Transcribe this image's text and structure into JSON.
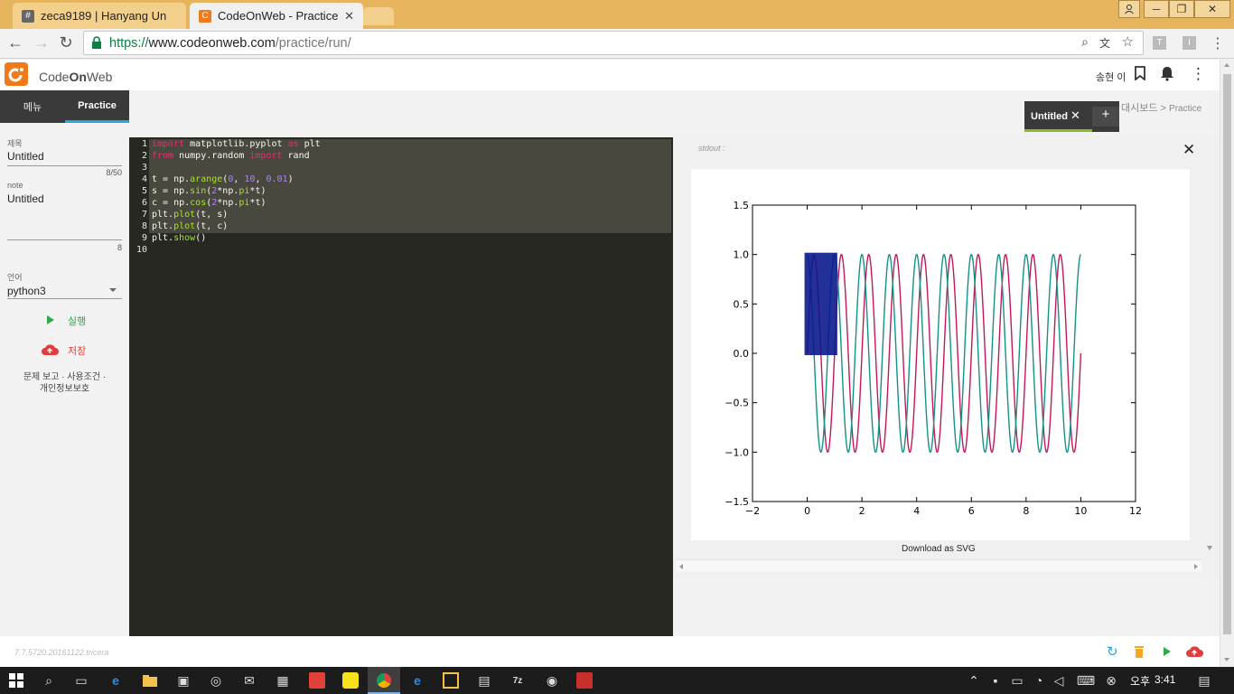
{
  "browser": {
    "tabs": [
      {
        "title": "zeca9189 | Hanyang Un",
        "favicon": "hash-icon"
      },
      {
        "title": "CodeOnWeb - Practice",
        "favicon": "codeonweb-icon"
      }
    ],
    "url_scheme": "https://",
    "url_host": "www.codeonweb.com",
    "url_path": "/practice/run/",
    "ext1": "T",
    "ext2": "I"
  },
  "app": {
    "logo_text_1": "Code",
    "logo_text_2": "On",
    "logo_text_3": "Web",
    "user_name": "송현 이",
    "accent": "#f07a1a"
  },
  "sidebar": {
    "tab_menu": "메뉴",
    "tab_practice": "Practice",
    "title_label": "제목",
    "title_value": "Untitled",
    "title_count": "8/50",
    "note_label": "note",
    "note_value": "Untitled",
    "note_count": "8",
    "lang_label": "언어",
    "lang_value": "python3",
    "run_label": "실행",
    "save_label": "저장",
    "links_line1": "문제 보고 · 사용조건 ·",
    "links_line2": "개인정보보호"
  },
  "breadcrumb": {
    "tab_label": "Untitled",
    "dashboard": "대시보드",
    "separator": ">",
    "current": "Practice"
  },
  "editor": {
    "line_numbers": [
      "1",
      "2",
      "3",
      "4",
      "5",
      "6",
      "7",
      "8",
      "9",
      "10"
    ]
  },
  "output": {
    "stdout_label": "stdout :",
    "download_label": "Download as SVG"
  },
  "footer": {
    "version": "7.7.5720.20161122.tricera"
  },
  "taskbar": {
    "ime": "오후",
    "time": "3:41"
  },
  "chart_data": {
    "type": "line",
    "x_range": [
      -2,
      12
    ],
    "y_range": [
      -1.5,
      1.5
    ],
    "x_ticks": [
      "−2",
      "0",
      "2",
      "4",
      "6",
      "8",
      "10",
      "12"
    ],
    "y_ticks": [
      "1.5",
      "1.0",
      "0.5",
      "0.0",
      "−0.5",
      "−1.0",
      "−1.5"
    ],
    "series": [
      {
        "function": "sin(2*pi*t)",
        "t_start": 0,
        "t_end": 10,
        "step": 0.01,
        "color": "#c2185b"
      },
      {
        "function": "cos(2*pi*t)",
        "t_start": 0,
        "t_end": 10,
        "step": 0.01,
        "color": "#13918a"
      }
    ],
    "overlay_rect": {
      "x0": 0,
      "x1": 1,
      "y0": 0,
      "y1": 1,
      "color": "#0a1a8c"
    }
  }
}
